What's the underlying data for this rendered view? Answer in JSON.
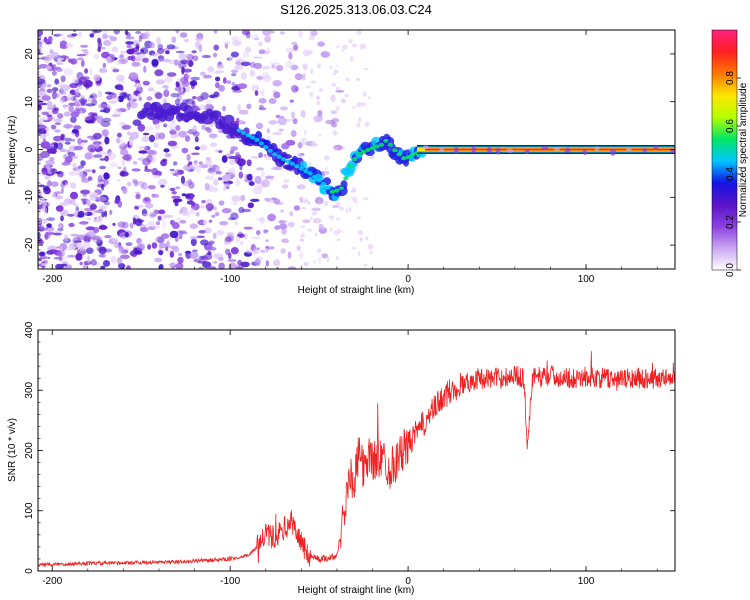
{
  "title": "S126.2025.313.06.03.C24",
  "chart_data": [
    {
      "type": "heatmap",
      "name": "spectrogram",
      "xlabel": "Height of straight line (km)",
      "ylabel": "Frequency (Hz)",
      "xlim": [
        -208,
        150
      ],
      "ylim": [
        -25,
        25
      ],
      "xticks": [
        -200,
        -100,
        0,
        100
      ],
      "yticks": [
        -20,
        -10,
        0,
        10,
        20
      ],
      "colorbar": {
        "label": "Normalized spectral amplitude",
        "range": [
          0,
          1
        ],
        "ticks": [
          "0.0",
          "0.2",
          "0.4",
          "0.6",
          "0.8"
        ],
        "tick_values": [
          0.0,
          0.2,
          0.4,
          0.6,
          0.8
        ],
        "colors": [
          "#ffffff",
          "#c9a6f2",
          "#8a3fe0",
          "#5a14c8",
          "#1414e6",
          "#00c8ff",
          "#00e664",
          "#b4ff00",
          "#ffe600",
          "#ff7800",
          "#ff2020",
          "#ff2080"
        ]
      },
      "ridge": [
        {
          "x": -150,
          "f": 8
        },
        {
          "x": -130,
          "f": 8
        },
        {
          "x": -110,
          "f": 7
        },
        {
          "x": -95,
          "f": 4
        },
        {
          "x": -85,
          "f": 2
        },
        {
          "x": -75,
          "f": -1
        },
        {
          "x": -65,
          "f": -3
        },
        {
          "x": -55,
          "f": -5
        },
        {
          "x": -48,
          "f": -7
        },
        {
          "x": -42,
          "f": -9
        },
        {
          "x": -37,
          "f": -8
        },
        {
          "x": -32,
          "f": -3
        },
        {
          "x": -28,
          "f": -1
        },
        {
          "x": -22,
          "f": 0
        },
        {
          "x": -15,
          "f": 1
        },
        {
          "x": -12,
          "f": 2
        },
        {
          "x": -8,
          "f": 0
        },
        {
          "x": -2,
          "f": -2
        },
        {
          "x": 3,
          "f": -1
        },
        {
          "x": 10,
          "f": 0
        },
        {
          "x": 150,
          "f": 0
        }
      ]
    },
    {
      "type": "line",
      "name": "snr",
      "xlabel": "Height of straight line (km)",
      "ylabel": "SNR (10 * v/v)",
      "xlim": [
        -208,
        150
      ],
      "ylim": [
        0,
        400
      ],
      "xticks": [
        -200,
        -100,
        0,
        100
      ],
      "yticks": [
        0,
        100,
        200,
        300,
        400
      ],
      "color": "#ee2020",
      "series": [
        {
          "name": "SNR",
          "x": [
            -208,
            -190,
            -170,
            -150,
            -130,
            -110,
            -100,
            -90,
            -85,
            -80,
            -75,
            -70,
            -65,
            -62,
            -58,
            -55,
            -50,
            -45,
            -40,
            -38,
            -35,
            -33,
            -30,
            -28,
            -26,
            -24,
            -22,
            -20,
            -15,
            -10,
            -5,
            0,
            5,
            10,
            15,
            20,
            25,
            30,
            40,
            50,
            60,
            65,
            67,
            70,
            80,
            90,
            100,
            110,
            120,
            130,
            140,
            150
          ],
          "y": [
            10,
            12,
            13,
            14,
            15,
            18,
            20,
            25,
            40,
            60,
            55,
            70,
            80,
            60,
            35,
            25,
            20,
            22,
            25,
            60,
            120,
            160,
            150,
            190,
            180,
            160,
            200,
            180,
            190,
            170,
            190,
            210,
            230,
            250,
            270,
            290,
            300,
            310,
            320,
            320,
            325,
            320,
            215,
            320,
            325,
            320,
            322,
            320,
            318,
            320,
            320,
            318
          ]
        }
      ]
    }
  ]
}
